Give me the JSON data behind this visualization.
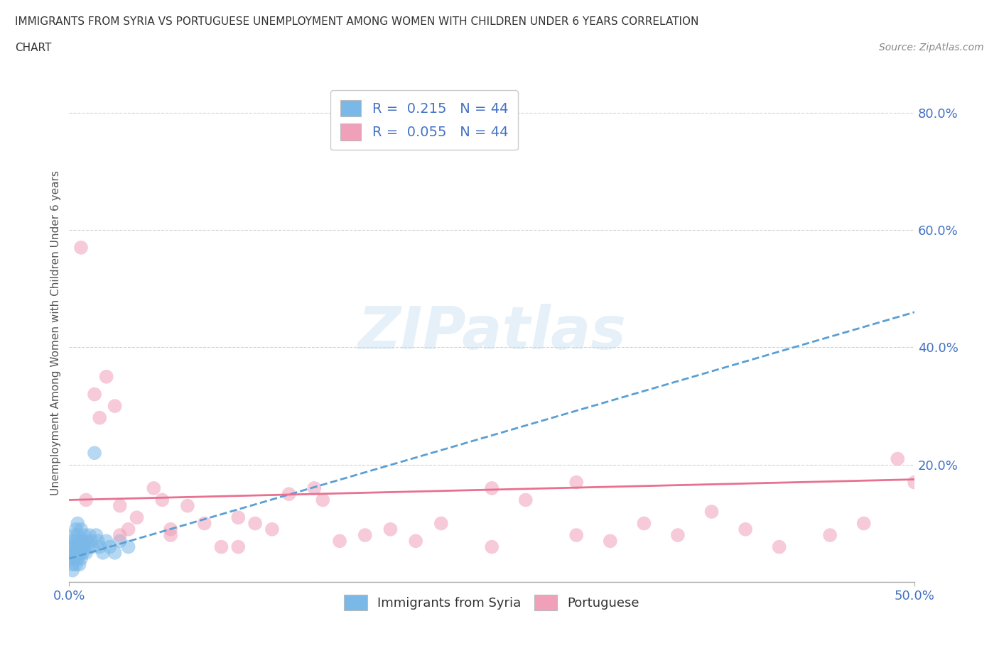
{
  "title_line1": "IMMIGRANTS FROM SYRIA VS PORTUGUESE UNEMPLOYMENT AMONG WOMEN WITH CHILDREN UNDER 6 YEARS CORRELATION",
  "title_line2": "CHART",
  "source_text": "Source: ZipAtlas.com",
  "ylabel": "Unemployment Among Women with Children Under 6 years",
  "xlim": [
    0.0,
    0.5
  ],
  "ylim": [
    0.0,
    0.85
  ],
  "x_tick_labels": [
    "0.0%",
    "50.0%"
  ],
  "y_tick_labels": [
    "",
    "20.0%",
    "40.0%",
    "60.0%",
    "80.0%"
  ],
  "legend_r1": "R =  0.215   N = 44",
  "legend_r2": "R =  0.055   N = 44",
  "color_syria": "#7ab8e8",
  "color_portuguese": "#f0a0b8",
  "color_syria_line": "#5a9fd4",
  "color_portuguese_line": "#e87090",
  "background_color": "#ffffff",
  "watermark_text": "ZIPatlas",
  "syria_scatter_x": [
    0.001,
    0.001,
    0.002,
    0.002,
    0.002,
    0.002,
    0.003,
    0.003,
    0.003,
    0.003,
    0.004,
    0.004,
    0.004,
    0.004,
    0.005,
    0.005,
    0.005,
    0.005,
    0.006,
    0.006,
    0.006,
    0.007,
    0.007,
    0.007,
    0.008,
    0.008,
    0.009,
    0.009,
    0.01,
    0.01,
    0.011,
    0.012,
    0.013,
    0.014,
    0.015,
    0.016,
    0.017,
    0.018,
    0.02,
    0.022,
    0.024,
    0.027,
    0.03,
    0.035
  ],
  "syria_scatter_y": [
    0.04,
    0.06,
    0.03,
    0.07,
    0.05,
    0.02,
    0.05,
    0.08,
    0.04,
    0.06,
    0.05,
    0.09,
    0.07,
    0.03,
    0.06,
    0.04,
    0.08,
    0.1,
    0.05,
    0.07,
    0.03,
    0.06,
    0.09,
    0.04,
    0.07,
    0.05,
    0.08,
    0.06,
    0.07,
    0.05,
    0.06,
    0.08,
    0.07,
    0.06,
    0.22,
    0.08,
    0.07,
    0.06,
    0.05,
    0.07,
    0.06,
    0.05,
    0.07,
    0.06
  ],
  "portuguese_scatter_x": [
    0.007,
    0.01,
    0.015,
    0.018,
    0.022,
    0.027,
    0.03,
    0.035,
    0.04,
    0.05,
    0.055,
    0.06,
    0.07,
    0.08,
    0.09,
    0.1,
    0.11,
    0.12,
    0.13,
    0.145,
    0.16,
    0.175,
    0.19,
    0.205,
    0.22,
    0.25,
    0.27,
    0.3,
    0.32,
    0.34,
    0.36,
    0.38,
    0.4,
    0.42,
    0.45,
    0.47,
    0.49,
    0.5,
    0.3,
    0.25,
    0.15,
    0.1,
    0.06,
    0.03
  ],
  "portuguese_scatter_y": [
    0.57,
    0.14,
    0.32,
    0.28,
    0.35,
    0.3,
    0.13,
    0.09,
    0.11,
    0.16,
    0.14,
    0.08,
    0.13,
    0.1,
    0.06,
    0.11,
    0.1,
    0.09,
    0.15,
    0.16,
    0.07,
    0.08,
    0.09,
    0.07,
    0.1,
    0.06,
    0.14,
    0.08,
    0.07,
    0.1,
    0.08,
    0.12,
    0.09,
    0.06,
    0.08,
    0.1,
    0.21,
    0.17,
    0.17,
    0.16,
    0.14,
    0.06,
    0.09,
    0.08
  ],
  "syria_line_x": [
    0.0,
    0.5
  ],
  "syria_line_y": [
    0.04,
    0.46
  ],
  "portuguese_line_x": [
    0.0,
    0.5
  ],
  "portuguese_line_y": [
    0.14,
    0.175
  ]
}
